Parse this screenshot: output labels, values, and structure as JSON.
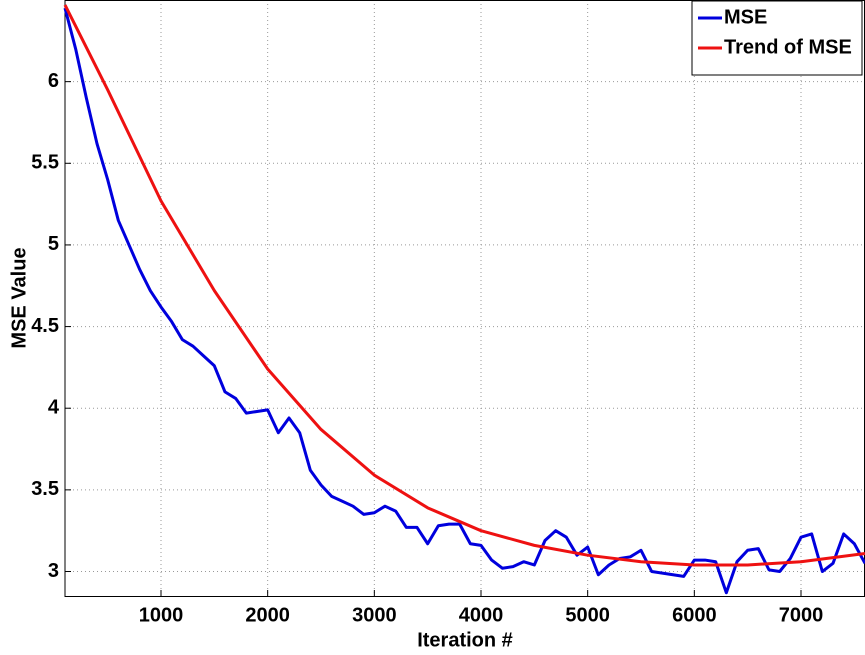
{
  "chart_data": {
    "type": "line",
    "xlabel": "Iteration #",
    "ylabel": "MSE Value",
    "xlim": [
      100,
      7600
    ],
    "ylim": [
      2.85,
      6.5
    ],
    "xticks": [
      1000,
      2000,
      3000,
      4000,
      5000,
      6000,
      7000
    ],
    "yticks": [
      3,
      3.5,
      4,
      4.5,
      5,
      5.5,
      6
    ],
    "grid": true,
    "legend": "upper right",
    "series": [
      {
        "name": "MSE",
        "color": "#0000dd",
        "x": [
          100,
          200,
          300,
          400,
          500,
          600,
          700,
          800,
          900,
          1000,
          1100,
          1200,
          1300,
          1400,
          1500,
          1600,
          1700,
          1800,
          1900,
          2000,
          2100,
          2200,
          2300,
          2400,
          2500,
          2600,
          2700,
          2800,
          2900,
          3000,
          3100,
          3200,
          3300,
          3400,
          3500,
          3600,
          3700,
          3800,
          3900,
          4000,
          4100,
          4200,
          4300,
          4400,
          4500,
          4600,
          4700,
          4800,
          4900,
          5000,
          5100,
          5200,
          5300,
          5400,
          5500,
          5600,
          5700,
          5800,
          5900,
          6000,
          6100,
          6200,
          6300,
          6400,
          6500,
          6600,
          6700,
          6800,
          6900,
          7000,
          7100,
          7200,
          7300,
          7400,
          7500,
          7600
        ],
        "values": [
          6.45,
          6.2,
          5.9,
          5.62,
          5.4,
          5.15,
          5.0,
          4.85,
          4.72,
          4.62,
          4.53,
          4.42,
          4.38,
          4.32,
          4.26,
          4.1,
          4.06,
          3.97,
          3.98,
          3.99,
          3.85,
          3.94,
          3.85,
          3.62,
          3.53,
          3.46,
          3.43,
          3.4,
          3.35,
          3.36,
          3.4,
          3.37,
          3.27,
          3.27,
          3.17,
          3.28,
          3.29,
          3.29,
          3.17,
          3.16,
          3.07,
          3.02,
          3.03,
          3.06,
          3.04,
          3.19,
          3.25,
          3.21,
          3.1,
          3.15,
          2.98,
          3.04,
          3.08,
          3.09,
          3.13,
          3.0,
          2.99,
          2.98,
          2.97,
          3.07,
          3.07,
          3.06,
          2.87,
          3.06,
          3.13,
          3.14,
          3.01,
          3.0,
          3.08,
          3.21,
          3.23,
          3.0,
          3.05,
          3.23,
          3.17,
          3.05
        ]
      },
      {
        "name": "Trend of MSE",
        "color": "#ee1111",
        "x": [
          100,
          500,
          1000,
          1500,
          2000,
          2500,
          3000,
          3500,
          4000,
          4500,
          5000,
          5500,
          6000,
          6500,
          7000,
          7600
        ],
        "values": [
          6.47,
          5.95,
          5.27,
          4.72,
          4.24,
          3.87,
          3.59,
          3.39,
          3.25,
          3.16,
          3.1,
          3.06,
          3.04,
          3.04,
          3.06,
          3.11
        ]
      }
    ]
  }
}
